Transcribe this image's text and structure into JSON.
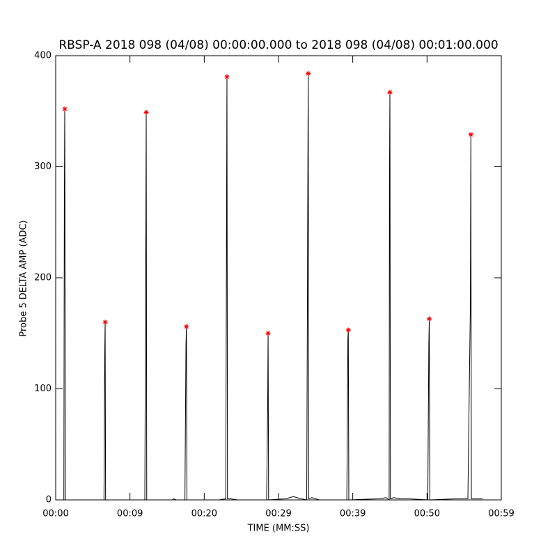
{
  "chart_data": {
    "type": "line",
    "title": "RBSP-A 2018 098 (04/08) 00:00:00.000 to 2018 098 (04/08) 00:01:00.000",
    "x_label": "TIME (MM:SS)",
    "y_label": "Probe 5 DELTA AMP (ADC)",
    "xlim": [
      0,
      60
    ],
    "ylim": [
      0,
      400
    ],
    "xticks": [
      {
        "value": 0,
        "label": "00:00"
      },
      {
        "value": 10,
        "label": "00:09"
      },
      {
        "value": 20,
        "label": "00:20"
      },
      {
        "value": 30,
        "label": "00:29"
      },
      {
        "value": 40,
        "label": "00:39"
      },
      {
        "value": 50,
        "label": "00:50"
      },
      {
        "value": 60,
        "label": "00:59"
      }
    ],
    "yticks": [
      0,
      100,
      200,
      300,
      400
    ],
    "series": [
      {
        "style": "line",
        "color": "#000000",
        "x": [
          0.9,
          1.1,
          1.16,
          1.22,
          1.3,
          6.5,
          6.6,
          6.66,
          6.72,
          12.0,
          12.12,
          12.19,
          12.26,
          15.7,
          15.9,
          16.2,
          17.4,
          17.54,
          17.6,
          17.67,
          22.0,
          22.9,
          23.0,
          23.06,
          23.13,
          23.5,
          24.5,
          28.4,
          28.54,
          28.6,
          28.67,
          31.0,
          32.0,
          33.0,
          33.8,
          33.94,
          34.0,
          34.07,
          34.5,
          35.5,
          39.2,
          39.34,
          39.4,
          39.47,
          43.5,
          44.5,
          44.9,
          44.94,
          45.0,
          45.07,
          45.5,
          46.5,
          47.5,
          50.1,
          50.24,
          50.3,
          50.37,
          54.0,
          55.5,
          55.84,
          55.9,
          55.97,
          56.3,
          57.5
        ],
        "values": [
          0,
          0,
          260,
          352,
          0,
          0,
          130,
          160,
          0,
          0,
          213,
          349,
          0,
          0,
          1,
          0,
          0,
          140,
          156,
          0,
          0,
          1,
          240,
          381,
          1,
          1,
          0,
          0,
          85,
          150,
          0,
          1,
          3,
          1,
          0,
          270,
          384,
          1,
          2,
          0,
          0,
          145,
          153,
          0,
          1,
          2,
          0,
          282,
          367,
          1,
          2,
          1,
          1,
          0,
          140,
          163,
          0,
          1,
          1,
          178,
          329,
          1,
          1,
          1
        ]
      },
      {
        "style": "markers",
        "color": "#ff0000",
        "x": [
          1.22,
          6.66,
          12.19,
          17.6,
          23.06,
          28.6,
          34.0,
          39.4,
          45.0,
          50.3,
          55.9
        ],
        "values": [
          352,
          160,
          349,
          156,
          381,
          150,
          384,
          153,
          367,
          163,
          329
        ]
      }
    ]
  }
}
